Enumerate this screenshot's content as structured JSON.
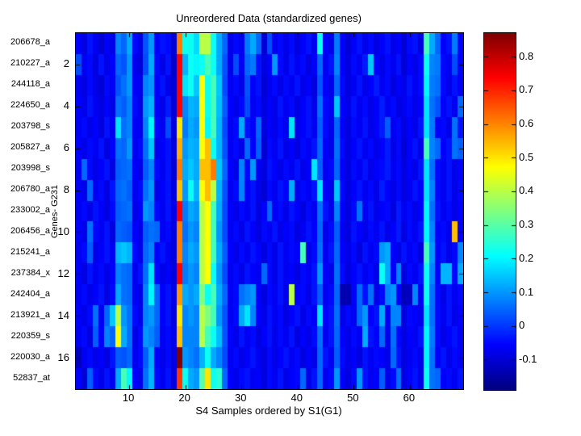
{
  "figure": {
    "title": "Unreordered Data (standardized genes)",
    "xlabel": "S4 Samples ordered by S1(G1)",
    "ylabel": "Genes- G231",
    "background_color": "#ffffff",
    "axis_color": "#000000"
  },
  "chart_data": {
    "type": "heatmap",
    "title": "Unreordered Data (standardized genes)",
    "xlabel": "S4 Samples ordered by S1(G1)",
    "ylabel": "Genes- G231",
    "colormap": "jet",
    "vmin": -0.19,
    "vmax": 0.87,
    "n_rows": 17,
    "n_cols": 69,
    "grid": false,
    "row_labels": [
      "206678_a",
      "210227_a",
      "244118_a",
      "224650_a",
      "203798_s",
      "205827_a",
      "203998_s",
      "206780_a",
      "233002_a",
      "206456_a",
      "215241_a",
      "237384_x",
      "242404_a",
      "213921_a",
      "220359_s",
      "220030_a",
      "52837_at"
    ],
    "y_ticks": [
      "2",
      "4",
      "6",
      "8",
      "10",
      "12",
      "14",
      "16"
    ],
    "y_tick_rows": [
      2,
      4,
      6,
      8,
      10,
      12,
      14,
      16
    ],
    "x_ticks": [
      "10",
      "20",
      "30",
      "40",
      "50",
      "60"
    ],
    "x_tick_cols": [
      10,
      20,
      30,
      40,
      50,
      60
    ],
    "colorbar_tick_labels": [
      "0.8",
      "0.7",
      "0.6",
      "0.5",
      "0.4",
      "0.3",
      "0.2",
      "0.1",
      "0",
      "-0.1"
    ],
    "colorbar_tick_values": [
      0.8,
      0.7,
      0.6,
      0.5,
      0.4,
      0.3,
      0.2,
      0.1,
      0,
      -0.1
    ],
    "values": [
      [
        -0.06,
        -0.09,
        -0.04,
        -0.07,
        -0.1,
        -0.06,
        -0.08,
        0.08,
        0.05,
        0.12,
        -0.05,
        -0.09,
        0.03,
        0.1,
        -0.06,
        -0.04,
        -0.05,
        -0.1,
        0.61,
        0.22,
        0.22,
        0.17,
        0.4,
        0.4,
        0.22,
        0.12,
        0.05,
        -0.08,
        -0.05,
        -0.07,
        0.07,
        0.12,
        0.05,
        -0.1,
        0.02,
        -0.07,
        -0.05,
        -0.08,
        -0.05,
        -0.09,
        -0.06,
        -0.04,
        -0.07,
        0.22,
        -0.06,
        -0.08,
        0.07,
        -0.06,
        -0.1,
        -0.06,
        -0.04,
        -0.08,
        -0.05,
        -0.09,
        -0.06,
        -0.04,
        -0.08,
        -0.06,
        -0.1,
        -0.05,
        -0.04,
        -0.09,
        0.28,
        0.12,
        0.05,
        -0.06,
        -0.04,
        0.07,
        -0.06
      ],
      [
        0.02,
        -0.07,
        -0.05,
        -0.09,
        -0.04,
        -0.08,
        -0.06,
        0.05,
        0.03,
        0.1,
        -0.07,
        -0.1,
        0.02,
        0.12,
        -0.05,
        -0.08,
        -0.04,
        -0.11,
        0.74,
        0.13,
        0.22,
        0.2,
        0.22,
        0.28,
        0.22,
        0.12,
        0.03,
        -0.08,
        0.02,
        -0.07,
        0.05,
        0.07,
        -0.04,
        -0.09,
        -0.06,
        0.1,
        -0.05,
        -0.08,
        -0.04,
        -0.07,
        -0.05,
        -0.09,
        -0.06,
        0.05,
        -0.07,
        -0.04,
        0.08,
        -0.06,
        -0.09,
        -0.05,
        -0.07,
        -0.03,
        0.15,
        -0.06,
        -0.08,
        -0.05,
        -0.07,
        -0.04,
        -0.1,
        -0.06,
        -0.08,
        -0.05,
        0.22,
        0.08,
        0.07,
        -0.05,
        -0.07,
        0.02,
        -0.06
      ],
      [
        -0.07,
        -0.09,
        -0.05,
        -0.08,
        -0.1,
        -0.05,
        -0.07,
        0.03,
        0.06,
        0.1,
        -0.06,
        -0.08,
        0.08,
        0.1,
        -0.06,
        -0.04,
        -0.08,
        -0.1,
        0.74,
        0.18,
        0.22,
        0.15,
        0.47,
        0.22,
        0.28,
        0.15,
        0.02,
        -0.07,
        -0.05,
        -0.08,
        0.03,
        -0.06,
        -0.04,
        -0.1,
        -0.07,
        -0.05,
        -0.08,
        -0.05,
        -0.07,
        -0.04,
        -0.08,
        -0.06,
        -0.09,
        0.03,
        -0.06,
        -0.08,
        0.05,
        -0.05,
        -0.09,
        -0.07,
        -0.04,
        -0.08,
        -0.06,
        -0.03,
        -0.07,
        -0.05,
        -0.09,
        -0.06,
        -0.08,
        -0.04,
        -0.07,
        -0.05,
        0.2,
        0.07,
        0.06,
        -0.05,
        -0.08,
        -0.04,
        -0.07
      ],
      [
        -0.06,
        -0.08,
        -0.04,
        -0.07,
        -0.09,
        -0.06,
        -0.08,
        0.06,
        0.04,
        0.08,
        -0.05,
        -0.09,
        0.1,
        0.13,
        -0.06,
        -0.08,
        -0.03,
        -0.1,
        0.74,
        0.08,
        0.13,
        0.12,
        0.47,
        0.22,
        0.28,
        0.14,
        0.04,
        -0.06,
        -0.08,
        -0.05,
        0.02,
        -0.07,
        -0.05,
        -0.09,
        -0.06,
        -0.08,
        -0.04,
        -0.07,
        -0.05,
        -0.09,
        -0.06,
        -0.04,
        -0.08,
        0.06,
        -0.05,
        -0.07,
        0.15,
        -0.06,
        -0.08,
        -0.04,
        -0.07,
        -0.05,
        -0.08,
        -0.06,
        -0.03,
        -0.07,
        -0.05,
        -0.09,
        -0.07,
        -0.05,
        -0.08,
        -0.06,
        0.18,
        0.06,
        0.03,
        -0.06,
        -0.04,
        -0.07,
        0.05
      ],
      [
        -0.07,
        -0.05,
        -0.08,
        -0.06,
        -0.09,
        -0.04,
        -0.07,
        0.18,
        0.06,
        0.08,
        -0.06,
        -0.08,
        0.08,
        0.2,
        -0.05,
        -0.07,
        0.02,
        -0.09,
        0.5,
        0.07,
        0.12,
        0.1,
        0.47,
        0.2,
        0.28,
        0.13,
        0.02,
        -0.07,
        -0.05,
        0.12,
        -0.04,
        -0.06,
        0.05,
        -0.09,
        -0.06,
        -0.08,
        -0.05,
        -0.07,
        0.18,
        -0.08,
        -0.06,
        -0.04,
        -0.07,
        0.04,
        -0.05,
        -0.08,
        0.05,
        -0.06,
        -0.09,
        -0.05,
        -0.07,
        -0.04,
        -0.08,
        -0.06,
        -0.03,
        0.04,
        -0.07,
        -0.05,
        -0.09,
        -0.06,
        -0.08,
        -0.04,
        0.18,
        0.07,
        -0.06,
        -0.05,
        -0.08,
        0.06,
        -0.04
      ],
      [
        -0.06,
        -0.08,
        -0.05,
        -0.07,
        -0.04,
        -0.09,
        -0.06,
        0.06,
        0.05,
        0.1,
        -0.07,
        -0.05,
        0.06,
        0.15,
        -0.08,
        -0.06,
        -0.04,
        -0.09,
        0.56,
        0.1,
        0.13,
        0.12,
        0.47,
        0.54,
        0.22,
        0.13,
        0.03,
        -0.07,
        -0.05,
        -0.08,
        0.05,
        -0.06,
        0.04,
        -0.1,
        -0.05,
        -0.07,
        -0.04,
        -0.08,
        -0.06,
        -0.09,
        -0.05,
        -0.07,
        -0.04,
        0.05,
        -0.06,
        -0.08,
        0.06,
        -0.05,
        -0.09,
        -0.06,
        -0.04,
        -0.07,
        -0.05,
        -0.08,
        -0.06,
        -0.03,
        -0.08,
        -0.05,
        -0.1,
        -0.06,
        -0.04,
        -0.08,
        0.28,
        0.08,
        0.05,
        -0.06,
        -0.04,
        0.06,
        0.04
      ],
      [
        -0.07,
        0.05,
        -0.05,
        -0.08,
        -0.06,
        -0.04,
        -0.09,
        0.04,
        0.05,
        0.06,
        -0.06,
        -0.08,
        0.04,
        0.08,
        -0.05,
        -0.07,
        -0.04,
        -0.1,
        0.61,
        0.12,
        0.15,
        0.12,
        0.54,
        0.54,
        0.61,
        0.15,
        0.05,
        -0.06,
        -0.08,
        0.08,
        -0.05,
        0.1,
        -0.07,
        -0.09,
        -0.04,
        -0.06,
        -0.08,
        -0.05,
        -0.07,
        -0.04,
        -0.08,
        -0.06,
        0.18,
        0.04,
        -0.07,
        -0.05,
        0.05,
        -0.06,
        -0.09,
        -0.05,
        -0.07,
        -0.04,
        -0.08,
        -0.06,
        -0.05,
        -0.03,
        -0.07,
        -0.05,
        -0.09,
        -0.06,
        -0.08,
        -0.04,
        0.18,
        0.06,
        -0.05,
        -0.07,
        -0.04,
        -0.08,
        -0.06
      ],
      [
        -0.06,
        -0.08,
        0.05,
        -0.07,
        -0.05,
        -0.09,
        -0.04,
        0.05,
        0.06,
        0.04,
        -0.07,
        -0.05,
        0.06,
        0.1,
        -0.08,
        -0.06,
        -0.04,
        -0.09,
        0.54,
        0.1,
        0.22,
        0.13,
        0.47,
        0.54,
        0.4,
        0.13,
        0.03,
        -0.07,
        -0.05,
        0.08,
        -0.06,
        -0.04,
        -0.08,
        -0.1,
        -0.05,
        -0.07,
        -0.04,
        -0.06,
        0.12,
        -0.08,
        -0.05,
        -0.07,
        -0.04,
        0.18,
        -0.06,
        -0.08,
        0.15,
        -0.05,
        -0.09,
        -0.06,
        -0.04,
        -0.07,
        -0.05,
        -0.08,
        -0.03,
        -0.06,
        -0.08,
        -0.05,
        -0.09,
        -0.07,
        -0.04,
        -0.06,
        0.18,
        0.08,
        -0.05,
        -0.07,
        -0.04,
        -0.08,
        -0.05
      ],
      [
        -0.07,
        -0.05,
        -0.08,
        -0.04,
        -0.06,
        -0.09,
        -0.05,
        0.04,
        0.05,
        0.06,
        -0.08,
        -0.06,
        0.1,
        0.08,
        -0.05,
        -0.07,
        -0.04,
        -0.08,
        0.74,
        0.07,
        0.12,
        0.1,
        0.4,
        0.47,
        0.28,
        0.12,
        0.02,
        -0.06,
        -0.08,
        -0.05,
        -0.07,
        -0.04,
        -0.09,
        -0.06,
        0.05,
        -0.07,
        -0.05,
        -0.08,
        -0.04,
        -0.06,
        -0.09,
        -0.05,
        -0.07,
        0.06,
        -0.04,
        -0.08,
        0.08,
        -0.06,
        -0.09,
        -0.05,
        0.06,
        -0.07,
        -0.04,
        -0.08,
        -0.06,
        -0.05,
        -0.09,
        -0.03,
        -0.07,
        -0.05,
        -0.08,
        -0.06,
        0.2,
        0.06,
        -0.04,
        -0.07,
        -0.05,
        -0.08,
        -0.06
      ],
      [
        -0.06,
        -0.08,
        0.06,
        -0.05,
        -0.07,
        -0.04,
        -0.09,
        0.05,
        0.04,
        0.03,
        -0.06,
        -0.08,
        0.04,
        0.06,
        0.05,
        -0.07,
        -0.05,
        -0.09,
        0.61,
        0.06,
        0.1,
        0.08,
        0.4,
        0.47,
        0.28,
        0.1,
        0.02,
        -0.07,
        -0.05,
        -0.08,
        -0.04,
        -0.06,
        -0.09,
        -0.05,
        -0.07,
        -0.04,
        -0.08,
        -0.06,
        -0.05,
        -0.09,
        -0.07,
        -0.04,
        -0.06,
        0.05,
        -0.08,
        -0.05,
        0.04,
        -0.07,
        -0.09,
        -0.04,
        -0.06,
        -0.08,
        -0.05,
        -0.07,
        -0.04,
        -0.08,
        -0.06,
        -0.03,
        -0.09,
        -0.05,
        -0.07,
        -0.04,
        0.2,
        0.08,
        -0.06,
        -0.05,
        -0.08,
        0.54,
        -0.06
      ],
      [
        -0.07,
        -0.05,
        0.04,
        -0.08,
        -0.06,
        -0.04,
        -0.07,
        0.13,
        0.15,
        0.13,
        -0.05,
        -0.08,
        0.05,
        0.08,
        -0.06,
        -0.04,
        -0.07,
        -0.09,
        0.61,
        0.08,
        0.12,
        0.1,
        0.4,
        0.47,
        0.28,
        0.12,
        0.04,
        -0.06,
        -0.08,
        -0.05,
        -0.07,
        -0.04,
        -0.06,
        -0.09,
        -0.05,
        -0.08,
        -0.04,
        -0.07,
        -0.05,
        -0.06,
        0.28,
        -0.08,
        -0.05,
        0.06,
        -0.07,
        -0.04,
        0.05,
        -0.06,
        -0.08,
        -0.05,
        -0.09,
        -0.04,
        -0.07,
        -0.05,
        0.1,
        0.12,
        -0.06,
        -0.08,
        -0.04,
        -0.07,
        -0.05,
        -0.09,
        0.28,
        0.1,
        -0.06,
        -0.04,
        -0.08,
        -0.05,
        0.08
      ],
      [
        -0.06,
        -0.09,
        -0.04,
        -0.07,
        -0.05,
        -0.08,
        -0.06,
        0.08,
        0.06,
        0.05,
        -0.07,
        -0.04,
        0.06,
        0.18,
        -0.05,
        -0.08,
        -0.06,
        -0.09,
        0.74,
        0.07,
        0.1,
        0.08,
        0.4,
        0.47,
        0.22,
        0.1,
        0.02,
        -0.07,
        -0.05,
        -0.08,
        -0.04,
        -0.06,
        -0.07,
        0.05,
        -0.05,
        -0.08,
        -0.04,
        -0.07,
        -0.06,
        -0.09,
        -0.05,
        -0.07,
        -0.04,
        0.1,
        -0.06,
        -0.08,
        0.06,
        -0.05,
        -0.09,
        -0.06,
        -0.04,
        -0.07,
        -0.05,
        -0.08,
        0.22,
        0.12,
        -0.06,
        0.08,
        -0.09,
        -0.05,
        -0.07,
        -0.04,
        0.22,
        0.08,
        -0.06,
        0.13,
        0.13,
        -0.05,
        0.12
      ],
      [
        -0.07,
        -0.05,
        -0.08,
        -0.06,
        -0.04,
        -0.09,
        -0.05,
        0.12,
        0.06,
        0.05,
        -0.07,
        -0.08,
        0.08,
        0.2,
        0.05,
        -0.06,
        -0.04,
        -0.08,
        0.58,
        0.12,
        0.1,
        0.12,
        0.34,
        0.22,
        0.28,
        0.12,
        0.05,
        -0.07,
        -0.05,
        0.06,
        0.08,
        0.1,
        -0.06,
        -0.09,
        -0.05,
        -0.07,
        -0.04,
        -0.08,
        0.4,
        -0.06,
        -0.05,
        -0.08,
        -0.04,
        0.04,
        -0.07,
        -0.05,
        0.05,
        -0.14,
        -0.14,
        -0.06,
        0.05,
        -0.04,
        0.06,
        -0.08,
        -0.05,
        0.08,
        0.1,
        -0.06,
        -0.13,
        -0.12,
        0.08,
        -0.07,
        0.22,
        0.06,
        -0.05,
        -0.08,
        -0.04,
        -0.07,
        -0.05
      ],
      [
        -0.06,
        -0.08,
        -0.05,
        0.06,
        -0.07,
        0.05,
        0.15,
        0.4,
        0.1,
        0.06,
        -0.05,
        -0.08,
        0.08,
        0.1,
        0.05,
        -0.06,
        -0.04,
        -0.09,
        0.5,
        0.08,
        0.1,
        0.08,
        0.4,
        0.34,
        0.28,
        0.1,
        0.03,
        -0.07,
        -0.05,
        0.12,
        0.18,
        0.08,
        -0.06,
        -0.08,
        -0.04,
        -0.07,
        -0.05,
        -0.09,
        -0.06,
        -0.04,
        -0.08,
        -0.05,
        -0.07,
        0.18,
        -0.06,
        -0.04,
        0.06,
        -0.08,
        -0.05,
        -0.07,
        0.05,
        0.1,
        -0.06,
        -0.04,
        0.12,
        -0.07,
        0.08,
        0.08,
        -0.09,
        -0.05,
        -0.06,
        -0.08,
        0.18,
        0.06,
        -0.05,
        -0.07,
        -0.04,
        -0.08,
        -0.06
      ],
      [
        -0.07,
        -0.05,
        -0.09,
        0.04,
        -0.06,
        0.08,
        0.05,
        0.47,
        0.12,
        0.06,
        -0.08,
        -0.05,
        0.1,
        0.08,
        0.04,
        -0.07,
        -0.05,
        -0.08,
        0.54,
        0.08,
        0.08,
        0.08,
        0.4,
        0.28,
        0.22,
        0.14,
        0.03,
        -0.06,
        -0.08,
        -0.04,
        -0.07,
        -0.05,
        -0.09,
        -0.06,
        -0.04,
        -0.08,
        -0.05,
        -0.07,
        -0.04,
        -0.09,
        -0.06,
        -0.08,
        -0.05,
        0.06,
        -0.07,
        -0.04,
        0.05,
        -0.06,
        -0.08,
        -0.05,
        -0.07,
        0.12,
        -0.04,
        -0.06,
        0.05,
        -0.08,
        0.06,
        -0.05,
        -0.09,
        -0.06,
        -0.07,
        -0.04,
        0.2,
        0.07,
        -0.05,
        -0.08,
        -0.06,
        -0.04,
        -0.07
      ],
      [
        -0.12,
        -0.07,
        -0.05,
        -0.08,
        -0.06,
        -0.09,
        -0.04,
        0.04,
        0.03,
        0.05,
        -0.07,
        -0.05,
        0.04,
        0.12,
        -0.06,
        -0.08,
        -0.05,
        -0.09,
        0.87,
        0.1,
        0.08,
        0.06,
        0.13,
        0.22,
        0.12,
        0.08,
        0.02,
        -0.07,
        -0.05,
        -0.08,
        -0.06,
        -0.04,
        -0.07,
        -0.09,
        -0.05,
        -0.08,
        -0.06,
        -0.04,
        -0.07,
        -0.05,
        -0.09,
        -0.06,
        -0.08,
        0.05,
        -0.04,
        -0.07,
        0.04,
        -0.05,
        -0.08,
        -0.06,
        -0.09,
        -0.04,
        -0.07,
        -0.05,
        -0.06,
        -0.08,
        0.05,
        -0.04,
        -0.09,
        -0.07,
        -0.05,
        -0.08,
        0.2,
        0.06,
        -0.06,
        -0.04,
        -0.08,
        -0.05,
        -0.07
      ],
      [
        -0.06,
        -0.1,
        0.04,
        -0.05,
        -0.08,
        -0.04,
        -0.07,
        0.12,
        0.28,
        0.2,
        -0.06,
        -0.08,
        0.06,
        0.13,
        -0.05,
        -0.07,
        -0.04,
        -0.09,
        0.68,
        0.22,
        0.12,
        0.1,
        0.3,
        0.5,
        0.22,
        0.25,
        0.05,
        -0.06,
        -0.08,
        -0.05,
        -0.04,
        -0.07,
        -0.06,
        -0.09,
        -0.05,
        -0.07,
        -0.04,
        -0.08,
        -0.06,
        -0.05,
        0.05,
        -0.08,
        -0.04,
        0.05,
        -0.07,
        -0.05,
        0.1,
        -0.06,
        -0.09,
        -0.05,
        0.1,
        -0.04,
        -0.07,
        -0.06,
        0.04,
        -0.08,
        -0.05,
        0.06,
        -0.09,
        -0.06,
        -0.04,
        -0.08,
        0.22,
        0.06,
        0.05,
        -0.06,
        -0.05,
        -0.07,
        -0.04
      ]
    ]
  }
}
